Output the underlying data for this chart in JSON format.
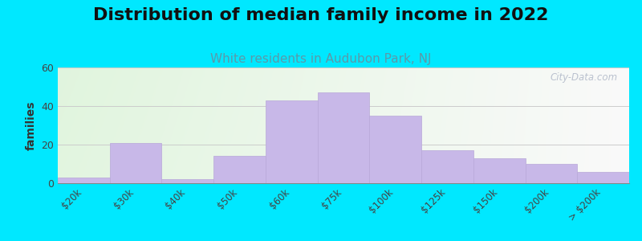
{
  "title": "Distribution of median family income in 2022",
  "subtitle": "White residents in Audubon Park, NJ",
  "ylabel": "families",
  "categories": [
    "$20k",
    "$30k",
    "$40k",
    "$50k",
    "$60k",
    "$75k",
    "$100k",
    "$125k",
    "$150k",
    "$200k",
    "> $200k"
  ],
  "values": [
    3,
    21,
    2,
    14,
    43,
    47,
    35,
    17,
    13,
    10,
    6
  ],
  "bar_color": "#c8b8e8",
  "bar_edge_color": "#b8a8d8",
  "background_outer": "#00e8ff",
  "ylim": [
    0,
    60
  ],
  "yticks": [
    0,
    20,
    40,
    60
  ],
  "title_fontsize": 16,
  "subtitle_fontsize": 11,
  "subtitle_color": "#5a9aaa",
  "ylabel_fontsize": 10,
  "watermark": "City-Data.com"
}
